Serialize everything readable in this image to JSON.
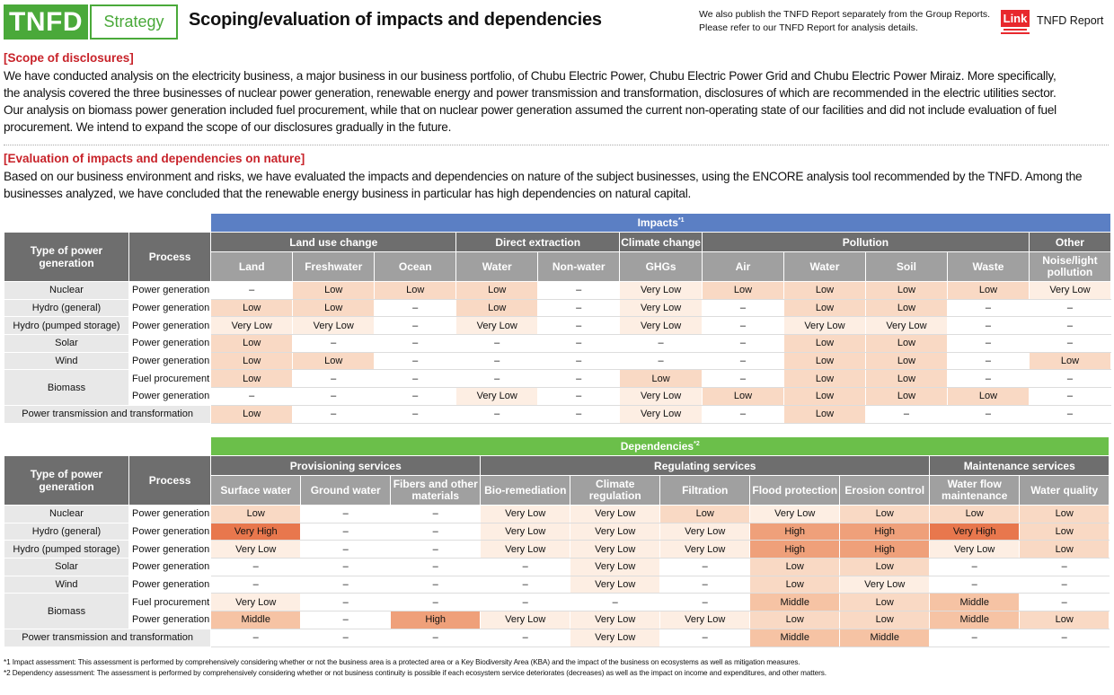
{
  "header": {
    "badge": "TNFD",
    "section": "Strategy",
    "title": "Scoping/evaluation of impacts and dependencies",
    "note_line1": "We also publish the TNFD Report separately from the Group Reports.",
    "note_line2": "Please refer to our TNFD Report for analysis details.",
    "link_label": "Link",
    "link_text": "TNFD Report"
  },
  "scope": {
    "heading": "[Scope of disclosures]",
    "lines": [
      "We have conducted analysis on the electricity business, a major business in our business portfolio, of Chubu Electric Power, Chubu Electric Power Grid and Chubu Electric Power Miraiz. More specifically,",
      "the analysis covered the three businesses of nuclear power generation, renewable energy and power transmission and transformation, disclosures of which are recommended in the electric utilities sector.",
      "Our analysis on biomass power generation included fuel procurement, while that on nuclear power generation assumed the current non-operating state of our facilities and did not include evaluation of fuel",
      "procurement. We intend to expand the scope of our disclosures gradually in the future."
    ]
  },
  "evaluation": {
    "heading": "[Evaluation of impacts and dependencies on nature]",
    "lines": [
      "Based on our business environment and risks, we have evaluated the impacts and dependencies on nature of the subject businesses, using the ENCORE analysis tool recommended by the TNFD. Among the",
      "businesses analyzed, we have concluded that the renewable energy business in particular has high dependencies on natural capital."
    ]
  },
  "impacts_table": {
    "caption": "Impacts",
    "caption_note": "*1",
    "col_type": "Type of power generation",
    "col_process": "Process",
    "groups": [
      "Land use change",
      "Direct extraction",
      "Climate change",
      "Pollution",
      "Other"
    ],
    "subcols": [
      "Land",
      "Freshwater",
      "Ocean",
      "Water",
      "Non-water",
      "GHGs",
      "Air",
      "Water",
      "Soil",
      "Waste",
      "Noise/light pollution"
    ],
    "rows": [
      {
        "type": "Nuclear",
        "process": "Power generation",
        "values": [
          "–",
          "Low",
          "Low",
          "Low",
          "–",
          "Very Low",
          "Low",
          "Low",
          "Low",
          "Low",
          "Very Low"
        ]
      },
      {
        "type": "Hydro (general)",
        "process": "Power generation",
        "values": [
          "Low",
          "Low",
          "–",
          "Low",
          "–",
          "Very Low",
          "–",
          "Low",
          "Low",
          "–",
          "–"
        ]
      },
      {
        "type": "Hydro (pumped storage)",
        "process": "Power generation",
        "values": [
          "Very Low",
          "Very Low",
          "–",
          "Very Low",
          "–",
          "Very Low",
          "–",
          "Very Low",
          "Very Low",
          "–",
          "–"
        ]
      },
      {
        "type": "Solar",
        "process": "Power generation",
        "values": [
          "Low",
          "–",
          "–",
          "–",
          "–",
          "–",
          "–",
          "Low",
          "Low",
          "–",
          "–"
        ]
      },
      {
        "type": "Wind",
        "process": "Power generation",
        "values": [
          "Low",
          "Low",
          "–",
          "–",
          "–",
          "–",
          "–",
          "Low",
          "Low",
          "–",
          "Low"
        ]
      },
      {
        "type": "Biomass",
        "process": "Fuel procurement",
        "values": [
          "Low",
          "–",
          "–",
          "–",
          "–",
          "Low",
          "–",
          "Low",
          "Low",
          "–",
          "–"
        ]
      },
      {
        "type": "",
        "process": "Power generation",
        "values": [
          "–",
          "–",
          "–",
          "Very Low",
          "–",
          "Very Low",
          "Low",
          "Low",
          "Low",
          "Low",
          "–"
        ]
      },
      {
        "type": "Power transmission and transformation",
        "process": "",
        "values": [
          "Low",
          "–",
          "–",
          "–",
          "–",
          "Very Low",
          "–",
          "Low",
          "–",
          "–",
          "–"
        ]
      }
    ]
  },
  "dependencies_table": {
    "caption": "Dependencies",
    "caption_note": "*2",
    "col_type": "Type of power generation",
    "col_process": "Process",
    "groups": [
      "Provisioning services",
      "Regulating services",
      "Maintenance services"
    ],
    "subcols": [
      "Surface water",
      "Ground water",
      "Fibers and other materials",
      "Bio-remediation",
      "Climate regulation",
      "Filtration",
      "Flood protection",
      "Erosion control",
      "Water flow maintenance",
      "Water quality"
    ],
    "rows": [
      {
        "type": "Nuclear",
        "process": "Power generation",
        "values": [
          "Low",
          "–",
          "–",
          "Very Low",
          "Very Low",
          "Low",
          "Very Low",
          "Low",
          "Low",
          "Low"
        ]
      },
      {
        "type": "Hydro (general)",
        "process": "Power generation",
        "values": [
          "Very High",
          "–",
          "–",
          "Very Low",
          "Very Low",
          "Very Low",
          "High",
          "High",
          "Very High",
          "Low"
        ]
      },
      {
        "type": "Hydro (pumped storage)",
        "process": "Power generation",
        "values": [
          "Very Low",
          "–",
          "–",
          "Very Low",
          "Very Low",
          "Very Low",
          "High",
          "High",
          "Very Low",
          "Low"
        ]
      },
      {
        "type": "Solar",
        "process": "Power generation",
        "values": [
          "–",
          "–",
          "–",
          "–",
          "Very Low",
          "–",
          "Low",
          "Low",
          "–",
          "–"
        ]
      },
      {
        "type": "Wind",
        "process": "Power generation",
        "values": [
          "–",
          "–",
          "–",
          "–",
          "Very Low",
          "–",
          "Low",
          "Very Low",
          "–",
          "–"
        ]
      },
      {
        "type": "Biomass",
        "process": "Fuel procurement",
        "values": [
          "Very Low",
          "–",
          "–",
          "–",
          "–",
          "–",
          "Middle",
          "Low",
          "Middle",
          "–"
        ]
      },
      {
        "type": "",
        "process": "Power generation",
        "values": [
          "Middle",
          "–",
          "High",
          "Very Low",
          "Very Low",
          "Very Low",
          "Low",
          "Low",
          "Middle",
          "Low"
        ]
      },
      {
        "type": "Power transmission and transformation",
        "process": "",
        "values": [
          "–",
          "–",
          "–",
          "–",
          "Very Low",
          "–",
          "Middle",
          "Middle",
          "–",
          "–"
        ]
      }
    ]
  },
  "footnotes": [
    "*1 Impact assessment: This assessment is performed by comprehensively considering whether or not the business area is a protected area or a Key Biodiversity Area (KBA) and the impact of the business on ecosystems as well as mitigation measures.",
    "*2 Dependency assessment: The assessment is performed by comprehensively considering whether or not business continuity is possible if each ecosystem service deteriorates (decreases) as well as the impact on income and expenditures, and other matters."
  ],
  "level_colors": {
    "Very Low": "#fdeee3",
    "Low": "#f9d9c4",
    "Middle": "#f6c3a4",
    "High": "#efa07a",
    "Very High": "#e8774d"
  }
}
